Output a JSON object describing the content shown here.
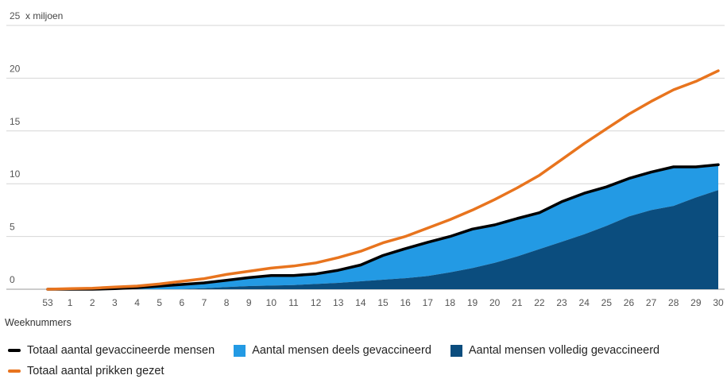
{
  "chart_data": {
    "type": "area",
    "title": "",
    "ylabel": "25 x miljoen",
    "xlabel": "Weeknummers",
    "categories": [
      "53",
      "1",
      "2",
      "3",
      "4",
      "5",
      "6",
      "7",
      "8",
      "9",
      "10",
      "11",
      "12",
      "13",
      "14",
      "15",
      "16",
      "17",
      "18",
      "19",
      "20",
      "21",
      "22",
      "23",
      "24",
      "25",
      "26",
      "27",
      "28",
      "29",
      "30"
    ],
    "ylim": [
      0,
      25
    ],
    "yticks": [
      "0",
      "5",
      "10",
      "15",
      "20",
      "25"
    ],
    "grid": true,
    "legend_position": "bottom",
    "series": [
      {
        "name": "Aantal mensen volledig gevaccineerd",
        "kind": "area",
        "color": "#0b4d7e",
        "values": [
          0,
          0,
          0,
          0,
          0,
          0,
          0,
          0.1,
          0.2,
          0.3,
          0.35,
          0.4,
          0.5,
          0.6,
          0.75,
          0.9,
          1.05,
          1.25,
          1.6,
          2.0,
          2.5,
          3.1,
          3.8,
          4.5,
          5.2,
          6.0,
          6.9,
          7.5,
          7.9,
          8.7,
          9.4
        ]
      },
      {
        "name": "Aantal mensen deels gevaccineerd",
        "kind": "area",
        "color": "#239ae4",
        "values": [
          0,
          0,
          0,
          0.05,
          0.15,
          0.3,
          0.45,
          0.5,
          0.65,
          0.8,
          0.95,
          0.9,
          0.95,
          1.2,
          1.55,
          2.3,
          2.8,
          3.2,
          3.4,
          3.7,
          3.6,
          3.6,
          3.45,
          3.8,
          3.9,
          3.7,
          3.6,
          3.6,
          3.7,
          2.9,
          2.4
        ]
      },
      {
        "name": "Totaal aantal gevaccineerde mensen",
        "kind": "line",
        "color": "#000000",
        "values": [
          0,
          0,
          0,
          0.05,
          0.15,
          0.3,
          0.45,
          0.6,
          0.85,
          1.1,
          1.3,
          1.3,
          1.45,
          1.8,
          2.3,
          3.2,
          3.85,
          4.45,
          5.0,
          5.7,
          6.1,
          6.7,
          7.25,
          8.3,
          9.1,
          9.7,
          10.5,
          11.1,
          11.6,
          11.6,
          11.8
        ]
      },
      {
        "name": "Totaal aantal prikken gezet",
        "kind": "line",
        "color": "#e8741e",
        "values": [
          0,
          0.05,
          0.1,
          0.2,
          0.3,
          0.5,
          0.75,
          1.0,
          1.4,
          1.7,
          2.0,
          2.2,
          2.5,
          3.0,
          3.6,
          4.4,
          5.0,
          5.8,
          6.6,
          7.5,
          8.5,
          9.6,
          10.8,
          12.3,
          13.8,
          15.2,
          16.6,
          17.8,
          18.9,
          19.7,
          20.7
        ]
      }
    ]
  },
  "legend": {
    "row1": [
      {
        "label": "Totaal aantal gevaccineerde mensen",
        "color": "#000000",
        "shape": "line"
      },
      {
        "label": "Aantal mensen deels gevaccineerd",
        "color": "#239ae4",
        "shape": "box"
      },
      {
        "label": "Aantal mensen volledig gevaccineerd",
        "color": "#0b4d7e",
        "shape": "box"
      }
    ],
    "row2": [
      {
        "label": "Totaal aantal prikken gezet",
        "color": "#e8741e",
        "shape": "line"
      }
    ]
  }
}
